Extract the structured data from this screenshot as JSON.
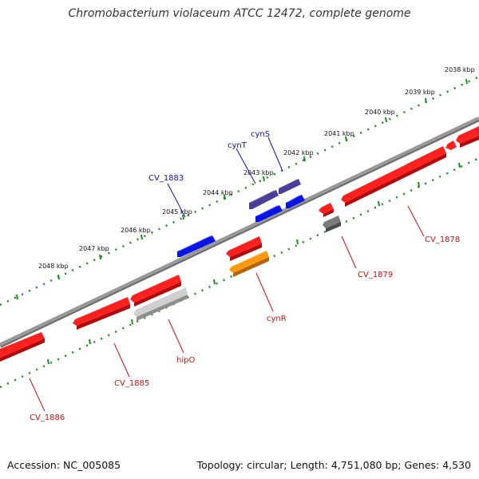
{
  "title": "Chromobacterium violaceum ATCC 12472, complete genome",
  "footer": {
    "accession": "Accession: NC_005085",
    "summary": "Topology: circular; Length: 4,751,080 bp; Genes: 4,530"
  },
  "colors": {
    "backbone": "#8a8a8a",
    "tick_dots": "#1e8c1e",
    "forward_gene": "#0a14e6",
    "forward_alt": "#4a3e9a",
    "reverse_gene": "#e60a0a",
    "reverse_alt": "#f08c0a",
    "pseudo_gray": "#bdbdbd",
    "dark_gray": "#6a6a6a",
    "label_forward": "#1010aa",
    "label_reverse": "#cc1010"
  },
  "scale_labels": [
    {
      "label": "2038 kbp",
      "kbp": 2038
    },
    {
      "label": "2039 kbp",
      "kbp": 2039
    },
    {
      "label": "2040 kbp",
      "kbp": 2040
    },
    {
      "label": "2041 kbp",
      "kbp": 2041
    },
    {
      "label": "2042 kbp",
      "kbp": 2042
    },
    {
      "label": "2043 kbp",
      "kbp": 2043
    },
    {
      "label": "2044 kbp",
      "kbp": 2044
    },
    {
      "label": "2045 kbp",
      "kbp": 2045
    },
    {
      "label": "2046 kbp",
      "kbp": 2046
    },
    {
      "label": "2047 kbp",
      "kbp": 2047
    },
    {
      "label": "2048 kbp",
      "kbp": 2048
    }
  ],
  "gene_labels": [
    {
      "label": "cynS",
      "strand": "forward"
    },
    {
      "label": "cynT",
      "strand": "forward"
    },
    {
      "label": "CV_1883",
      "strand": "forward"
    },
    {
      "label": "CV_1878",
      "strand": "reverse"
    },
    {
      "label": "CV_1879",
      "strand": "reverse"
    },
    {
      "label": "cynR",
      "strand": "reverse"
    },
    {
      "label": "hipO",
      "strand": "reverse"
    },
    {
      "label": "CV_1885",
      "strand": "reverse"
    },
    {
      "label": "CV_1886",
      "strand": "reverse"
    }
  ]
}
